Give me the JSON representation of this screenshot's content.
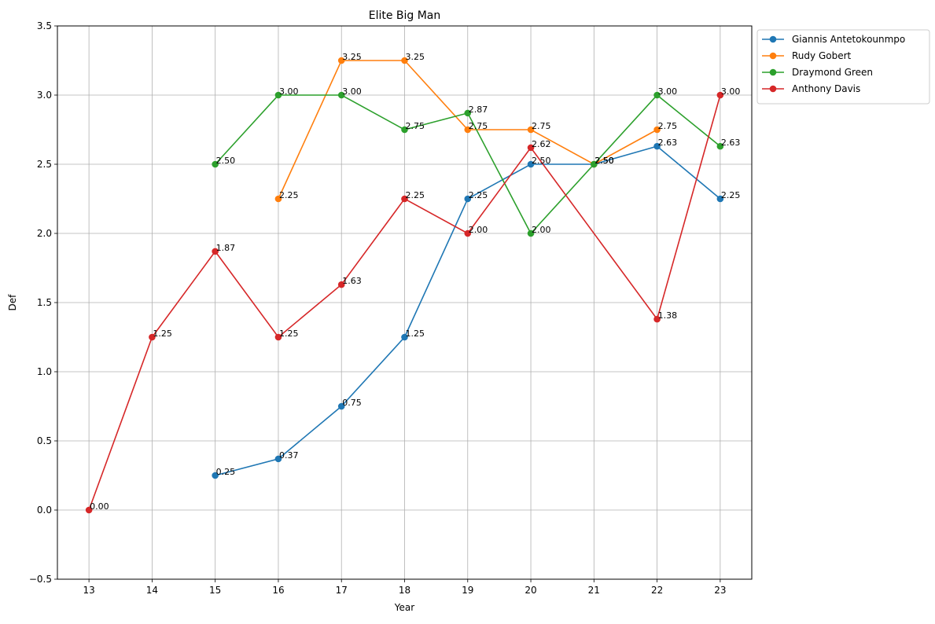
{
  "chart_data": {
    "type": "line",
    "title": "Elite Big Man",
    "xlabel": "Year",
    "ylabel": "Def",
    "x": [
      13,
      14,
      15,
      16,
      17,
      18,
      19,
      20,
      21,
      22,
      23
    ],
    "xlim": [
      12.5,
      23.5
    ],
    "ylim": [
      -0.5,
      3.5
    ],
    "yticks": [
      -0.5,
      0.0,
      0.5,
      1.0,
      1.5,
      2.0,
      2.5,
      3.0,
      3.5
    ],
    "ytick_labels": [
      "−0.5",
      "0.0",
      "0.5",
      "1.0",
      "1.5",
      "2.0",
      "2.5",
      "3.0",
      "3.5"
    ],
    "grid": true,
    "legend_position": "outside-top-right",
    "series": [
      {
        "name": "Giannis Antetokounmpo",
        "color": "#1f77b4",
        "points": [
          [
            15,
            0.25
          ],
          [
            16,
            0.37
          ],
          [
            17,
            0.75
          ],
          [
            18,
            1.25
          ],
          [
            19,
            2.25
          ],
          [
            20,
            2.5
          ],
          [
            21,
            2.5
          ],
          [
            22,
            2.63
          ],
          [
            23,
            2.25
          ]
        ],
        "labels": [
          "0.25",
          "0.37",
          "0.75",
          "1.25",
          "2.25",
          "2.50",
          "2.50",
          "2.63",
          "2.25"
        ]
      },
      {
        "name": "Rudy Gobert",
        "color": "#ff7f0e",
        "points": [
          [
            16,
            2.25
          ],
          [
            17,
            3.25
          ],
          [
            18,
            3.25
          ],
          [
            19,
            2.75
          ],
          [
            20,
            2.75
          ],
          [
            21,
            2.5
          ],
          [
            22,
            2.75
          ]
        ],
        "labels": [
          "2.25",
          "3.25",
          "3.25",
          "2.75",
          "2.75",
          "2.50",
          "2.75"
        ]
      },
      {
        "name": "Draymond Green",
        "color": "#2ca02c",
        "points": [
          [
            15,
            2.5
          ],
          [
            16,
            3.0
          ],
          [
            17,
            3.0
          ],
          [
            18,
            2.75
          ],
          [
            19,
            2.87
          ],
          [
            20,
            2.0
          ],
          [
            21,
            2.5
          ],
          [
            22,
            3.0
          ],
          [
            23,
            2.63
          ]
        ],
        "labels": [
          "2.50",
          "3.00",
          "3.00",
          "2.75",
          "2.87",
          "2.00",
          "2.50",
          "3.00",
          "2.63"
        ]
      },
      {
        "name": "Anthony Davis",
        "color": "#d62728",
        "points": [
          [
            13,
            0.0
          ],
          [
            14,
            1.25
          ],
          [
            15,
            1.87
          ],
          [
            16,
            1.25
          ],
          [
            17,
            1.63
          ],
          [
            18,
            2.25
          ],
          [
            19,
            2.0
          ],
          [
            20,
            2.62
          ],
          [
            22,
            1.38
          ],
          [
            23,
            3.0
          ]
        ],
        "labels": [
          "0.00",
          "1.25",
          "1.87",
          "1.25",
          "1.63",
          "2.25",
          "2.00",
          "2.62",
          "1.38",
          "3.00"
        ]
      }
    ]
  }
}
